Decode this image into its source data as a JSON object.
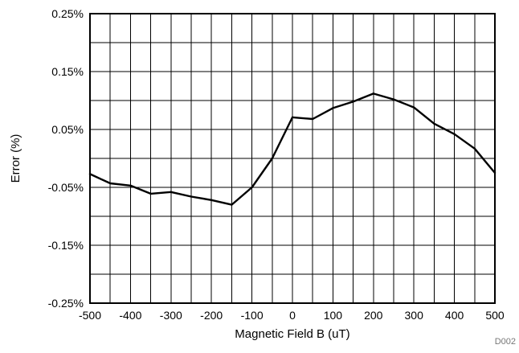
{
  "chart_data": {
    "type": "line",
    "title": "",
    "xlabel": "Magnetic Field B (uT)",
    "ylabel": "Error (%)",
    "xlim": [
      -500,
      500
    ],
    "ylim": [
      -0.25,
      0.25
    ],
    "grid": true,
    "x_ticks": [
      -500,
      -400,
      -300,
      -200,
      -100,
      0,
      100,
      200,
      300,
      400,
      500
    ],
    "x_tick_labels": [
      "-500",
      "-400",
      "-300",
      "-200",
      "-100",
      "0",
      "100",
      "200",
      "300",
      "400",
      "500"
    ],
    "y_ticks": [
      -0.25,
      -0.15,
      -0.05,
      0.05,
      0.15,
      0.25
    ],
    "y_tick_labels": [
      "-0.25%",
      "-0.15%",
      "-0.05%",
      "0.05%",
      "0.15%",
      "0.25%"
    ],
    "minor_x_gridlines": [
      -450,
      -350,
      -250,
      -150,
      -50,
      50,
      150,
      250,
      350,
      450
    ],
    "minor_y_gridlines": [
      -0.2,
      -0.1,
      0.0,
      0.1,
      0.2
    ],
    "series": [
      {
        "color": "#000000",
        "x": [
          -500,
          -450,
          -400,
          -350,
          -300,
          -250,
          -200,
          -150,
          -100,
          -50,
          0,
          50,
          100,
          150,
          200,
          250,
          300,
          350,
          400,
          450,
          500
        ],
        "y": [
          -0.027,
          -0.043,
          -0.047,
          -0.061,
          -0.058,
          -0.066,
          -0.072,
          -0.08,
          -0.05,
          0.0,
          0.071,
          0.068,
          0.087,
          0.098,
          0.112,
          0.102,
          0.088,
          0.06,
          0.042,
          0.017,
          -0.025
        ]
      }
    ],
    "code_label": "D002"
  }
}
